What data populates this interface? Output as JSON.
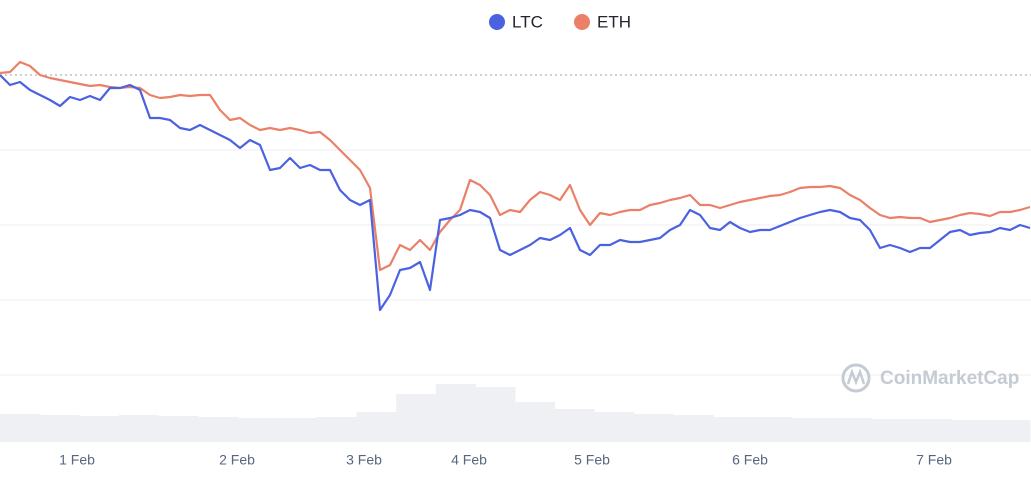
{
  "chart_data": {
    "type": "line",
    "series": [
      {
        "name": "LTC",
        "color": "#4a62e0",
        "values": [
          0,
          -10,
          -7,
          -15,
          -20,
          -25,
          -31,
          -22,
          -25,
          -21,
          -25,
          -13,
          -13,
          -10,
          -15,
          -43,
          -43,
          -45,
          -53,
          -55,
          -50,
          -55,
          -60,
          -65,
          -73,
          -65,
          -70,
          -95,
          -93,
          -83,
          -93,
          -90,
          -95,
          -95,
          -115,
          -125,
          -130,
          -125,
          -235,
          -220,
          -195,
          -193,
          -187,
          -215,
          -145,
          -143,
          -140,
          -135,
          -137,
          -143,
          -175,
          -180,
          -175,
          -170,
          -163,
          -165,
          -160,
          -153,
          -175,
          -180,
          -170,
          -170,
          -165,
          -167,
          -167,
          -165,
          -163,
          -155,
          -150,
          -135,
          -140,
          -153,
          -155,
          -147,
          -153,
          -157,
          -155,
          -155,
          -151,
          -147,
          -143,
          -140,
          -137,
          -135,
          -137,
          -143,
          -145,
          -155,
          -173,
          -170,
          -173,
          -177,
          -173,
          -173,
          -165,
          -157,
          -155,
          -160,
          -158,
          -157,
          -153,
          -155,
          -150,
          -153
        ]
      },
      {
        "name": "ETH",
        "color": "#ea8068",
        "values": [
          2,
          3,
          13,
          9,
          0,
          -3,
          -5,
          -7,
          -9,
          -11,
          -10,
          -12,
          -13,
          -12,
          -13,
          -20,
          -23,
          -22,
          -20,
          -21,
          -20,
          -20,
          -35,
          -45,
          -43,
          -50,
          -55,
          -53,
          -55,
          -53,
          -55,
          -58,
          -57,
          -65,
          -75,
          -85,
          -95,
          -113,
          -195,
          -190,
          -170,
          -175,
          -165,
          -175,
          -157,
          -145,
          -135,
          -105,
          -110,
          -120,
          -140,
          -135,
          -137,
          -125,
          -117,
          -120,
          -125,
          -110,
          -135,
          -150,
          -138,
          -140,
          -137,
          -135,
          -135,
          -130,
          -128,
          -125,
          -123,
          -120,
          -130,
          -130,
          -133,
          -130,
          -127,
          -125,
          -123,
          -121,
          -120,
          -117,
          -113,
          -112,
          -112,
          -111,
          -113,
          -120,
          -125,
          -133,
          -140,
          -143,
          -142,
          -143,
          -143,
          -147,
          -145,
          -143,
          -140,
          -138,
          -139,
          -141,
          -137,
          -137,
          -135,
          -132
        ]
      }
    ],
    "volume": [
      28,
      27,
      26,
      27,
      26,
      25,
      24,
      24,
      25,
      30,
      48,
      58,
      55,
      40,
      33,
      30,
      28,
      27,
      25,
      25,
      24,
      24,
      23,
      23,
      22,
      22
    ],
    "xlim": [
      0,
      103
    ],
    "xticks": [
      {
        "value": 7.7,
        "label": "1 Feb"
      },
      {
        "value": 23.7,
        "label": "2 Feb"
      },
      {
        "value": 36.4,
        "label": "3 Feb"
      },
      {
        "value": 46.9,
        "label": "4 Feb"
      },
      {
        "value": 59.2,
        "label": "5 Feb"
      },
      {
        "value": 75.0,
        "label": "6 Feb"
      },
      {
        "value": 93.4,
        "label": "7 Feb"
      }
    ],
    "ylim": [
      -367,
      75
    ],
    "yticks": [
      0,
      -75,
      -150,
      -225,
      -300
    ],
    "grid": true,
    "legend": "top",
    "watermark": "CoinMarketCap"
  }
}
